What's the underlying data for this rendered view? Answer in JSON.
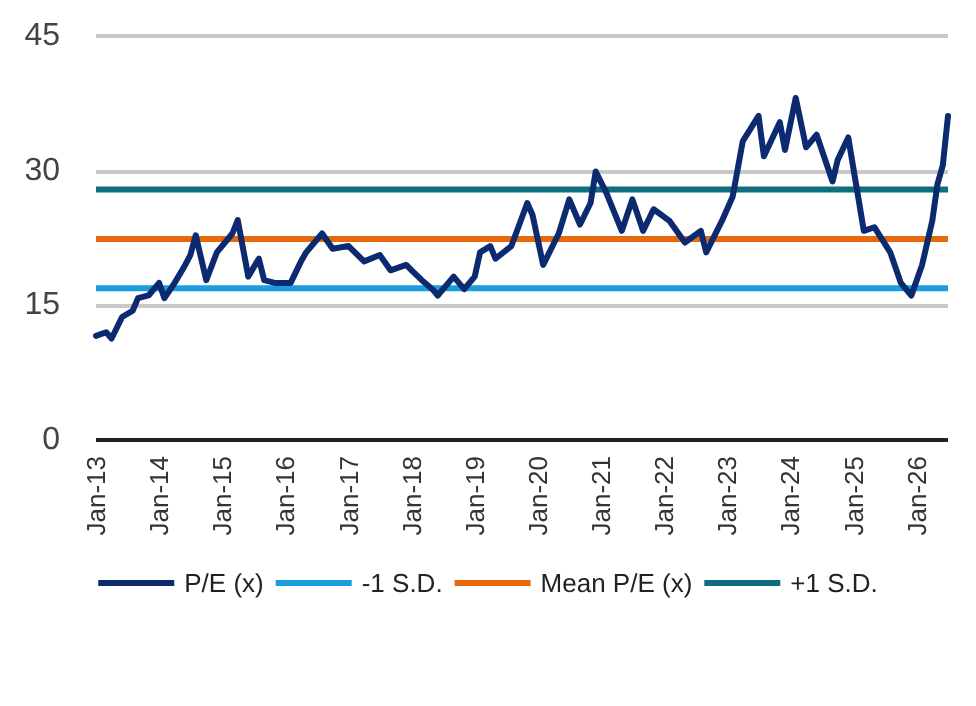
{
  "chart_data": {
    "type": "line",
    "x": [
      "2013-01",
      "2013-03",
      "2013-04",
      "2013-06",
      "2013-08",
      "2013-09",
      "2013-11",
      "2014-01",
      "2014-02",
      "2014-04",
      "2014-06",
      "2014-07",
      "2014-08",
      "2014-10",
      "2014-12",
      "2015-03",
      "2015-04",
      "2015-06",
      "2015-08",
      "2015-09",
      "2015-11",
      "2016-02",
      "2016-04",
      "2016-05",
      "2016-07",
      "2016-08",
      "2016-10",
      "2017-01",
      "2017-04",
      "2017-07",
      "2017-09",
      "2017-12",
      "2018-01",
      "2018-03",
      "2018-05",
      "2018-06",
      "2018-09",
      "2018-11",
      "2019-01",
      "2019-02",
      "2019-04",
      "2019-05",
      "2019-08",
      "2019-11",
      "2019-12",
      "2020-02",
      "2020-05",
      "2020-07",
      "2020-09",
      "2020-11",
      "2020-12",
      "2021-02",
      "2021-05",
      "2021-07",
      "2021-09",
      "2021-11",
      "2022-02",
      "2022-05",
      "2022-08",
      "2022-09",
      "2022-12",
      "2023-02",
      "2023-04",
      "2023-07",
      "2023-08",
      "2023-11",
      "2023-12",
      "2024-02",
      "2024-04",
      "2024-06",
      "2024-09",
      "2024-10",
      "2024-12",
      "2025-03",
      "2025-05",
      "2025-08",
      "2025-10",
      "2025-12",
      "2026-02",
      "2026-04",
      "2026-05",
      "2026-06",
      "2026-07"
    ],
    "series": [
      {
        "name": "P/E (x)",
        "color": "#0b2a6f",
        "values": [
          11.6,
          12.0,
          11.3,
          13.7,
          14.4,
          15.8,
          16.1,
          17.5,
          15.8,
          17.5,
          19.5,
          20.6,
          22.8,
          17.8,
          20.9,
          23.0,
          24.5,
          18.2,
          20.2,
          17.8,
          17.5,
          17.5,
          19.9,
          20.9,
          22.3,
          23.0,
          21.3,
          21.6,
          19.9,
          20.6,
          18.9,
          19.5,
          18.9,
          17.8,
          16.8,
          16.1,
          18.2,
          16.8,
          18.2,
          20.9,
          21.6,
          20.2,
          21.6,
          26.4,
          25.1,
          19.5,
          23.0,
          26.8,
          24.0,
          26.4,
          29.9,
          27.5,
          23.3,
          26.8,
          23.3,
          25.7,
          24.4,
          22.0,
          23.3,
          20.9,
          24.4,
          27.1,
          33.3,
          36.1,
          31.6,
          35.4,
          32.3,
          38.1,
          32.6,
          34.0,
          28.8,
          31.2,
          33.7,
          23.3,
          23.7,
          20.9,
          17.5,
          16.1,
          19.5,
          24.4,
          28.5,
          30.6,
          36.1
        ]
      }
    ],
    "ref_lines": [
      {
        "axis": "y",
        "value": 16.9,
        "label": "-1 S.D.",
        "color": "#1a9ee0"
      },
      {
        "axis": "y",
        "value": 22.4,
        "label": "Mean P/E (x)",
        "color": "#e8690b"
      },
      {
        "axis": "y",
        "value": 27.9,
        "label": "+1 S.D.",
        "color": "#0e6e7e"
      }
    ],
    "xlim": [
      "2013-01",
      "2026-07"
    ],
    "xticks": [
      {
        "value": "2013-01",
        "label": "Jan-13"
      },
      {
        "value": "2014-01",
        "label": "Jan-14"
      },
      {
        "value": "2015-01",
        "label": "Jan-15"
      },
      {
        "value": "2016-01",
        "label": "Jan-16"
      },
      {
        "value": "2017-01",
        "label": "Jan-17"
      },
      {
        "value": "2018-01",
        "label": "Jan-18"
      },
      {
        "value": "2019-01",
        "label": "Jan-19"
      },
      {
        "value": "2020-01",
        "label": "Jan-20"
      },
      {
        "value": "2021-01",
        "label": "Jan-21"
      },
      {
        "value": "2022-01",
        "label": "Jan-22"
      },
      {
        "value": "2023-01",
        "label": "Jan-23"
      },
      {
        "value": "2024-01",
        "label": "Jan-24"
      },
      {
        "value": "2025-01",
        "label": "Jan-25"
      },
      {
        "value": "2026-01",
        "label": "Jan-26"
      }
    ],
    "ylim": [
      0,
      45
    ],
    "yticks": [
      0,
      15,
      30,
      45
    ],
    "grid": "y",
    "legend": "bottom",
    "marker": "none",
    "line_style": "solid"
  }
}
